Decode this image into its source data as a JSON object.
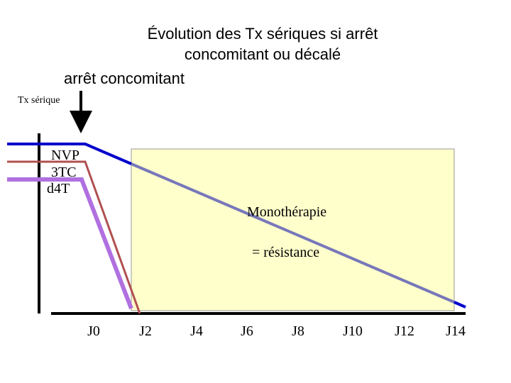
{
  "title": [
    "Évolution des Tx sériques si arrêt",
    "concomitant ou décalé"
  ],
  "arrow_label": "arrêt concomitant",
  "y_axis_label": "Tx sérique",
  "line_labels": [
    "NVP",
    "3TC",
    "d4T"
  ],
  "box_labels": [
    "Monothérapie",
    "= résistance"
  ],
  "x_labels": [
    "J0",
    "J2",
    "J4",
    "J6",
    "J8",
    "J10",
    "J12",
    "J14"
  ]
}
